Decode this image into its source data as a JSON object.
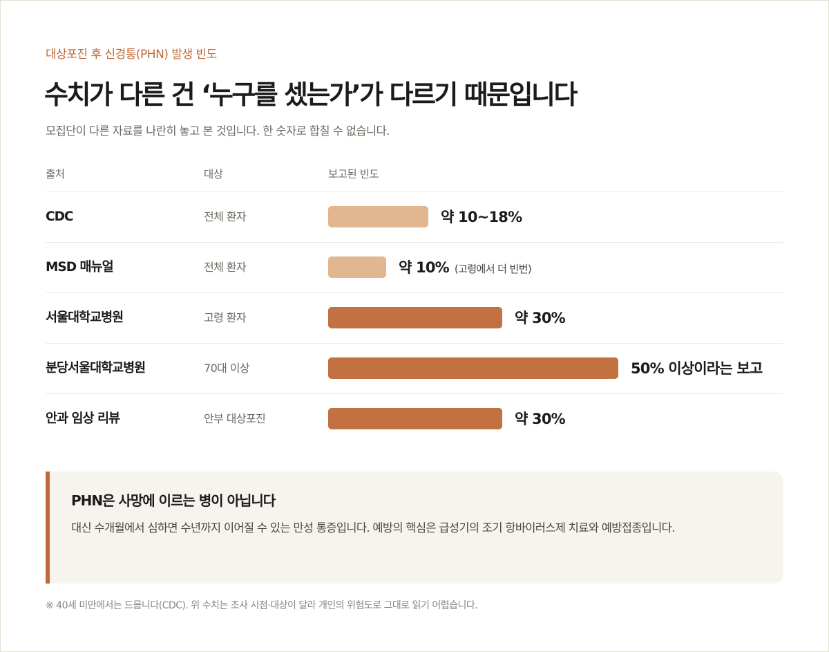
{
  "eyebrow": "대상포진 후 신경통(PHN) 발생 빈도",
  "title": "수치가 다른 건 ‘누구를 셌는가’가 다르기 때문입니다",
  "subtitle": "모집단이 다른 자료를 나란히 놓고 본 것입니다. 한 숫자로 합칠 수 없습니다.",
  "table": {
    "headers": [
      "출처",
      "대상",
      "보고된 빈도"
    ]
  },
  "colors": {
    "accent": "#c06a38",
    "bar_light": "#e2b78f",
    "bar_dark": "#c27140"
  },
  "chart_data": {
    "type": "bar",
    "orientation": "horizontal",
    "categories": [
      "CDC",
      "MSD 매뉴얼",
      "서울대학교병원",
      "분당서울대학교병원",
      "안과 임상 리뷰"
    ],
    "targets": [
      "전체 환자",
      "전체 환자",
      "고령 환자",
      "70대 이상",
      "안부 대상포진"
    ],
    "values": [
      18,
      10,
      30,
      50,
      30
    ],
    "value_labels": [
      "약 10~18%",
      "약 10%",
      "약 30%",
      "50% 이상이라는 보고",
      "약 30%"
    ],
    "value_notes": [
      "",
      "(고령에서 더 빈번)",
      "",
      "",
      ""
    ],
    "series_color_keys": [
      "light",
      "light",
      "dark",
      "dark",
      "dark"
    ],
    "xlim": [
      0,
      50
    ],
    "grid": false
  },
  "callout": {
    "title": "PHN은 사망에 이르는 병이 아닙니다",
    "body": "대신 수개월에서 심하면 수년까지 이어질 수 있는 만성 통증입니다. 예방의 핵심은 급성기의 조기 항바이러스제 치료와 예방접종입니다."
  },
  "footnote": "※ 40세 미만에서는 드뭅니다(CDC). 위 수치는 조사 시점·대상이 달라 개인의 위험도로 그대로 읽기 어렵습니다."
}
